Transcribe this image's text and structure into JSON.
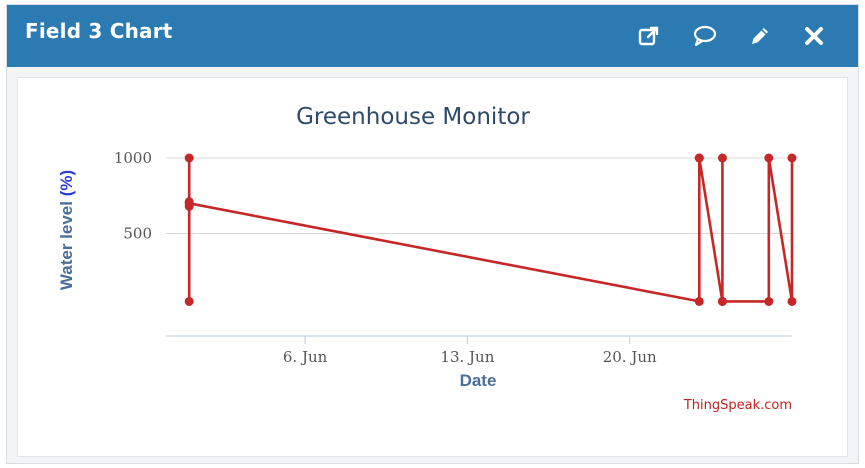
{
  "window": {
    "title": "Field 3 Chart",
    "icons": [
      "external-link-icon",
      "comment-icon",
      "pencil-icon",
      "close-icon"
    ]
  },
  "credit": "ThingSpeak.com",
  "colors": {
    "header": "#2b7bb2",
    "series": "#c62828",
    "title": "#2e4a6b"
  },
  "chart_data": {
    "type": "line",
    "title": "Greenhouse Monitor",
    "xlabel": "Date",
    "ylabel": "Water level",
    "ylabel_unit": "(%)",
    "x_ticks": [
      "6. Jun",
      "13. Jun",
      "20. Jun"
    ],
    "y_ticks": [
      500,
      1000
    ],
    "ylim": [
      0,
      1000
    ],
    "xlim": [
      "2024-05-31",
      "2024-06-27"
    ],
    "grid": true,
    "legend": "none",
    "series": [
      {
        "points": [
          {
            "x": "2024-06-01",
            "y": 50
          },
          {
            "x": "2024-06-01",
            "y": 1000
          },
          {
            "x": "2024-06-01",
            "y": 680
          },
          {
            "x": "2024-06-01",
            "y": 710
          },
          {
            "x": "2024-06-01",
            "y": 700
          },
          {
            "x": "2024-06-23",
            "y": 50
          },
          {
            "x": "2024-06-23",
            "y": 1000
          },
          {
            "x": "2024-06-23",
            "y": 1000
          },
          {
            "x": "2024-06-24",
            "y": 50
          },
          {
            "x": "2024-06-24",
            "y": 1000
          },
          {
            "x": "2024-06-24",
            "y": 50
          },
          {
            "x": "2024-06-26",
            "y": 50
          },
          {
            "x": "2024-06-26",
            "y": 1000
          },
          {
            "x": "2024-06-27",
            "y": 50
          },
          {
            "x": "2024-06-27",
            "y": 1000
          }
        ]
      }
    ]
  }
}
